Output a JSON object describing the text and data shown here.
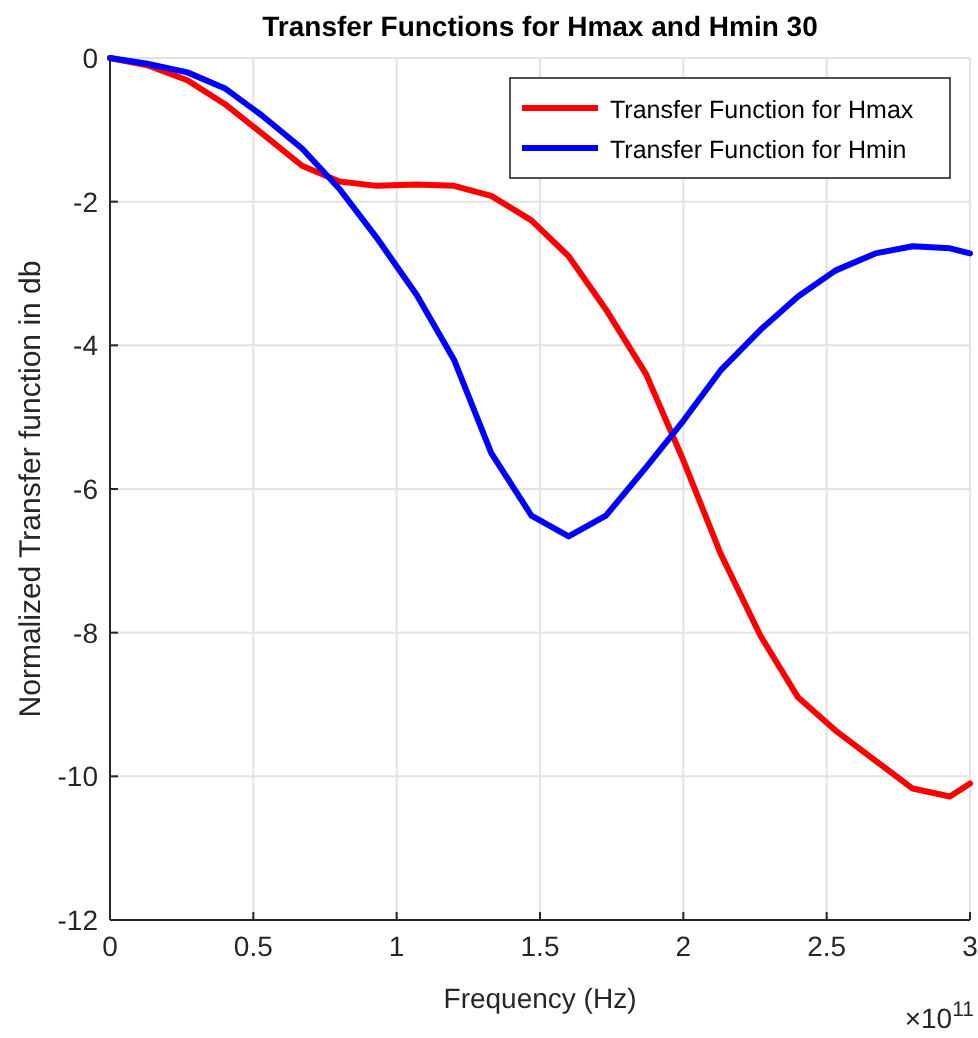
{
  "chart_data": {
    "type": "line",
    "title": "Transfer Functions for Hmax and Hmin 30",
    "xlabel": "Frequency (Hz)",
    "ylabel": "Normalized Transfer function in db",
    "annotations": [
      "×10$^{11}$"
    ],
    "xlim": [
      0,
      3
    ],
    "xticks": [
      0,
      0.5,
      1,
      1.5,
      2,
      2.5,
      3
    ],
    "ylim": [
      -12,
      0
    ],
    "yticks": [
      -12,
      -10,
      -8,
      -6,
      -4,
      -2,
      0
    ],
    "grid": true,
    "legend": "top right",
    "marker": "none",
    "line_style": "solid",
    "x": [
      0,
      0.13,
      0.27,
      0.4,
      0.53,
      0.67,
      0.8,
      0.93,
      1.07,
      1.2,
      1.33,
      1.47,
      1.6,
      1.73,
      1.87,
      2.0,
      2.13,
      2.27,
      2.4,
      2.53,
      2.67,
      2.8,
      2.93,
      3.0
    ],
    "series": [
      {
        "name": "Transfer Function for Hmax",
        "color": "#ff0000",
        "values": [
          0,
          -0.1,
          -0.31,
          -0.64,
          -1.05,
          -1.5,
          -1.72,
          -1.78,
          -1.76,
          -1.78,
          -1.92,
          -2.26,
          -2.76,
          -3.5,
          -4.4,
          -5.6,
          -6.9,
          -8.05,
          -8.9,
          -9.36,
          -9.78,
          -10.17,
          -10.28,
          -10.1
        ]
      },
      {
        "name": "Transfer Function for Hmin",
        "color": "#0000ff",
        "values": [
          0,
          -0.08,
          -0.2,
          -0.42,
          -0.8,
          -1.26,
          -1.82,
          -2.5,
          -3.3,
          -4.2,
          -5.5,
          -6.37,
          -6.66,
          -6.37,
          -5.7,
          -5.05,
          -4.35,
          -3.78,
          -3.32,
          -2.96,
          -2.72,
          -2.62,
          -2.65,
          -2.72
        ]
      }
    ]
  }
}
